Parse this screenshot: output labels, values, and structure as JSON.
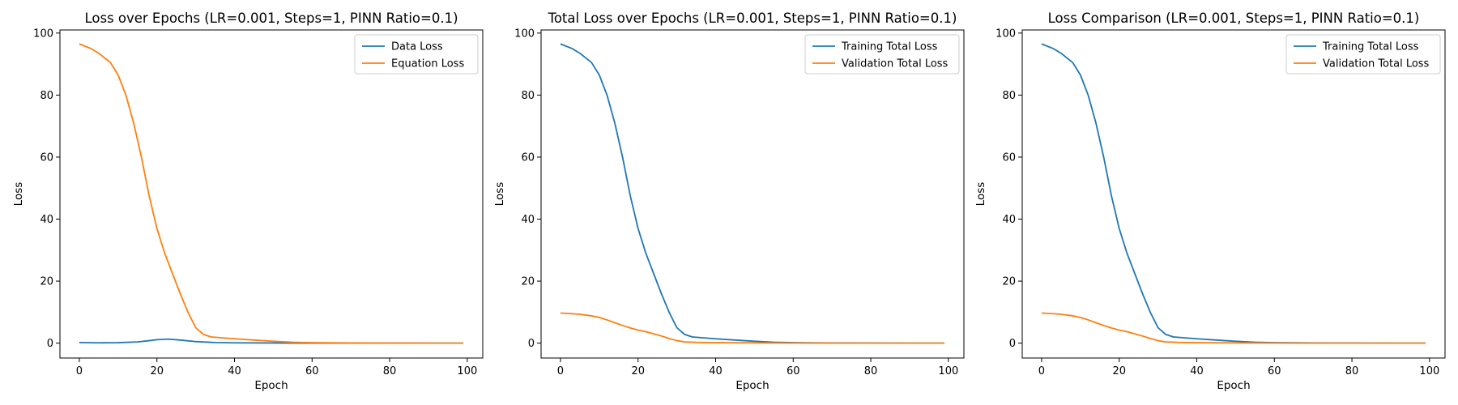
{
  "chart_data": [
    {
      "type": "line",
      "title": "Loss over Epochs (LR=0.001, Steps=1, PINN Ratio=0.1)",
      "xlabel": "Epoch",
      "ylabel": "Loss",
      "xlim": [
        -5,
        104
      ],
      "ylim": [
        -4.8,
        101
      ],
      "xticks": [
        0,
        20,
        40,
        60,
        80,
        100
      ],
      "yticks": [
        0,
        20,
        40,
        60,
        80,
        100
      ],
      "grid": false,
      "legend_position": "top-right",
      "series": [
        {
          "name": "Data Loss",
          "color": "#1f77b4",
          "points": [
            [
              0,
              0.2
            ],
            [
              5,
              0.1
            ],
            [
              10,
              0.15
            ],
            [
              15,
              0.4
            ],
            [
              18,
              0.8
            ],
            [
              20,
              1.1
            ],
            [
              23,
              1.3
            ],
            [
              26,
              1.0
            ],
            [
              30,
              0.5
            ],
            [
              35,
              0.2
            ],
            [
              40,
              0.1
            ],
            [
              50,
              0.05
            ],
            [
              60,
              0.02
            ],
            [
              70,
              0.01
            ],
            [
              80,
              0.01
            ],
            [
              90,
              0.01
            ],
            [
              99,
              0.0
            ]
          ]
        },
        {
          "name": "Equation Loss",
          "color": "#ff7f0e",
          "points": [
            [
              0,
              96.5
            ],
            [
              3,
              95
            ],
            [
              5,
              93.5
            ],
            [
              8,
              90.5
            ],
            [
              10,
              86.5
            ],
            [
              12,
              80
            ],
            [
              14,
              71
            ],
            [
              16,
              60
            ],
            [
              18,
              47.5
            ],
            [
              20,
              37
            ],
            [
              22,
              29
            ],
            [
              24,
              22.5
            ],
            [
              26,
              16
            ],
            [
              28,
              10
            ],
            [
              30,
              5
            ],
            [
              32,
              2.8
            ],
            [
              34,
              2
            ],
            [
              37,
              1.7
            ],
            [
              40,
              1.4
            ],
            [
              45,
              1.0
            ],
            [
              50,
              0.6
            ],
            [
              55,
              0.3
            ],
            [
              60,
              0.15
            ],
            [
              70,
              0.05
            ],
            [
              80,
              0.02
            ],
            [
              90,
              0.01
            ],
            [
              99,
              0.0
            ]
          ]
        }
      ]
    },
    {
      "type": "line",
      "title": "Total Loss over Epochs (LR=0.001, Steps=1, PINN Ratio=0.1)",
      "xlabel": "Epoch",
      "ylabel": "Loss",
      "xlim": [
        -5,
        104
      ],
      "ylim": [
        -4.8,
        101
      ],
      "xticks": [
        0,
        20,
        40,
        60,
        80,
        100
      ],
      "yticks": [
        0,
        20,
        40,
        60,
        80,
        100
      ],
      "grid": false,
      "legend_position": "top-right",
      "series": [
        {
          "name": "Training Total Loss",
          "color": "#1f77b4",
          "points": [
            [
              0,
              96.5
            ],
            [
              3,
              95
            ],
            [
              5,
              93.5
            ],
            [
              8,
              90.5
            ],
            [
              10,
              86.5
            ],
            [
              12,
              80
            ],
            [
              14,
              71
            ],
            [
              16,
              60
            ],
            [
              18,
              47.5
            ],
            [
              20,
              37
            ],
            [
              22,
              29
            ],
            [
              24,
              22.5
            ],
            [
              26,
              16
            ],
            [
              28,
              10
            ],
            [
              30,
              5
            ],
            [
              32,
              2.8
            ],
            [
              34,
              2
            ],
            [
              37,
              1.7
            ],
            [
              40,
              1.4
            ],
            [
              45,
              1.0
            ],
            [
              50,
              0.6
            ],
            [
              55,
              0.3
            ],
            [
              60,
              0.15
            ],
            [
              70,
              0.05
            ],
            [
              80,
              0.02
            ],
            [
              90,
              0.01
            ],
            [
              99,
              0.0
            ]
          ]
        },
        {
          "name": "Validation Total Loss",
          "color": "#ff7f0e",
          "points": [
            [
              0,
              9.7
            ],
            [
              3,
              9.5
            ],
            [
              5,
              9.3
            ],
            [
              8,
              8.8
            ],
            [
              10,
              8.3
            ],
            [
              12,
              7.5
            ],
            [
              14,
              6.6
            ],
            [
              16,
              5.7
            ],
            [
              18,
              4.9
            ],
            [
              20,
              4.2
            ],
            [
              22,
              3.7
            ],
            [
              24,
              3.0
            ],
            [
              26,
              2.3
            ],
            [
              28,
              1.5
            ],
            [
              30,
              0.8
            ],
            [
              32,
              0.4
            ],
            [
              35,
              0.25
            ],
            [
              40,
              0.15
            ],
            [
              50,
              0.08
            ],
            [
              60,
              0.03
            ],
            [
              70,
              0.01
            ],
            [
              80,
              0.01
            ],
            [
              90,
              0.0
            ],
            [
              99,
              0.0
            ]
          ]
        }
      ]
    },
    {
      "type": "line",
      "title": "Loss Comparison (LR=0.001, Steps=1, PINN Ratio=0.1)",
      "xlabel": "Epoch",
      "ylabel": "Loss",
      "xlim": [
        -5,
        104
      ],
      "ylim": [
        -4.8,
        101
      ],
      "xticks": [
        0,
        20,
        40,
        60,
        80,
        100
      ],
      "yticks": [
        0,
        20,
        40,
        60,
        80,
        100
      ],
      "grid": false,
      "legend_position": "top-right",
      "series": [
        {
          "name": "Training Total Loss",
          "color": "#1f77b4",
          "points": [
            [
              0,
              96.5
            ],
            [
              3,
              95
            ],
            [
              5,
              93.5
            ],
            [
              8,
              90.5
            ],
            [
              10,
              86.5
            ],
            [
              12,
              80
            ],
            [
              14,
              71
            ],
            [
              16,
              60
            ],
            [
              18,
              47.5
            ],
            [
              20,
              37
            ],
            [
              22,
              29
            ],
            [
              24,
              22.5
            ],
            [
              26,
              16
            ],
            [
              28,
              10
            ],
            [
              30,
              5
            ],
            [
              32,
              2.8
            ],
            [
              34,
              2
            ],
            [
              37,
              1.7
            ],
            [
              40,
              1.4
            ],
            [
              45,
              1.0
            ],
            [
              50,
              0.6
            ],
            [
              55,
              0.3
            ],
            [
              60,
              0.15
            ],
            [
              70,
              0.05
            ],
            [
              80,
              0.02
            ],
            [
              90,
              0.01
            ],
            [
              99,
              0.0
            ]
          ]
        },
        {
          "name": "Validation Total Loss",
          "color": "#ff7f0e",
          "points": [
            [
              0,
              9.7
            ],
            [
              3,
              9.5
            ],
            [
              5,
              9.3
            ],
            [
              8,
              8.8
            ],
            [
              10,
              8.3
            ],
            [
              12,
              7.5
            ],
            [
              14,
              6.6
            ],
            [
              16,
              5.7
            ],
            [
              18,
              4.9
            ],
            [
              20,
              4.2
            ],
            [
              22,
              3.7
            ],
            [
              24,
              3.0
            ],
            [
              26,
              2.3
            ],
            [
              28,
              1.5
            ],
            [
              30,
              0.8
            ],
            [
              32,
              0.4
            ],
            [
              35,
              0.25
            ],
            [
              40,
              0.15
            ],
            [
              50,
              0.08
            ],
            [
              60,
              0.03
            ],
            [
              70,
              0.01
            ],
            [
              80,
              0.01
            ],
            [
              90,
              0.0
            ],
            [
              99,
              0.0
            ]
          ]
        }
      ]
    }
  ]
}
